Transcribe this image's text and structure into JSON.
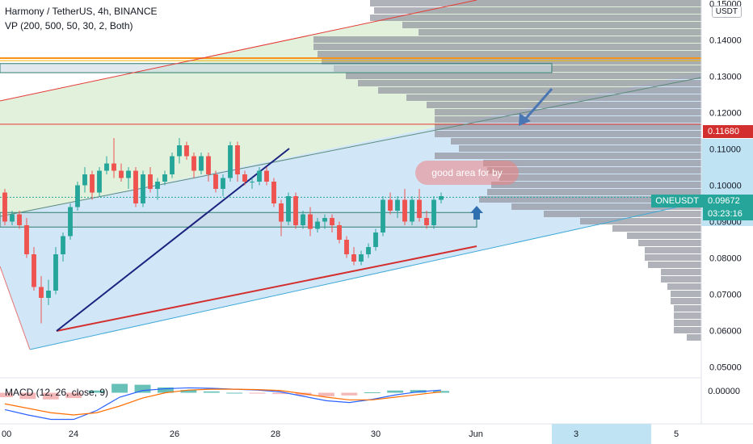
{
  "header": {
    "title": "Harmony / TetherUS, 4h, BINANCE",
    "indicator": "VP (200, 500, 50, 30, 2, Both)"
  },
  "currency_label": "USDT",
  "symbol_label": "ONEUSDT",
  "current_price": "0.09672",
  "countdown": "03:23:16",
  "marked_price": "0.11680",
  "annotation": "good area for by",
  "macd": {
    "label": "MACD (12, 26, close, 9)",
    "value": "0.00000"
  },
  "colors": {
    "up": "#26a69a",
    "down": "#ef5350",
    "volume_profile": "#9598a1",
    "upper_channel_fill": "#dff0d8",
    "lower_channel_fill": "#cce4f7",
    "orange_line": "#f7931a",
    "red_line": "#e53935",
    "current_price_bg": "#26a69a",
    "marked_price_bg": "#d32f2f"
  },
  "chart_data": {
    "type": "candlestick",
    "y_axis_ticks": [
      "0.15000",
      "0.14000",
      "0.13000",
      "0.12000",
      "0.11000",
      "0.10000",
      "0.09000",
      "0.08000",
      "0.07000",
      "0.06000",
      "0.05000"
    ],
    "ylim": [
      0.047,
      0.151
    ],
    "x_axis_ticks": [
      "00",
      "24",
      "26",
      "28",
      "30",
      "Jun",
      "3",
      "5"
    ],
    "highlighted_tick": "3",
    "candles": [
      [
        0.098,
        0.099,
        0.089,
        0.09
      ],
      [
        0.09,
        0.093,
        0.089,
        0.092
      ],
      [
        0.092,
        0.093,
        0.088,
        0.089
      ],
      [
        0.089,
        0.091,
        0.08,
        0.081
      ],
      [
        0.081,
        0.083,
        0.071,
        0.072
      ],
      [
        0.072,
        0.075,
        0.062,
        0.069
      ],
      [
        0.069,
        0.074,
        0.067,
        0.071
      ],
      [
        0.071,
        0.083,
        0.07,
        0.081
      ],
      [
        0.081,
        0.087,
        0.079,
        0.086
      ],
      [
        0.086,
        0.095,
        0.085,
        0.094
      ],
      [
        0.094,
        0.101,
        0.093,
        0.1
      ],
      [
        0.1,
        0.105,
        0.098,
        0.103
      ],
      [
        0.103,
        0.104,
        0.096,
        0.098
      ],
      [
        0.098,
        0.105,
        0.097,
        0.104
      ],
      [
        0.104,
        0.108,
        0.103,
        0.106
      ],
      [
        0.106,
        0.113,
        0.102,
        0.104
      ],
      [
        0.104,
        0.106,
        0.101,
        0.102
      ],
      [
        0.102,
        0.105,
        0.099,
        0.104
      ],
      [
        0.104,
        0.105,
        0.094,
        0.095
      ],
      [
        0.095,
        0.104,
        0.094,
        0.103
      ],
      [
        0.103,
        0.105,
        0.098,
        0.099
      ],
      [
        0.099,
        0.102,
        0.096,
        0.101
      ],
      [
        0.101,
        0.104,
        0.1,
        0.103
      ],
      [
        0.103,
        0.109,
        0.102,
        0.108
      ],
      [
        0.108,
        0.113,
        0.106,
        0.111
      ],
      [
        0.111,
        0.112,
        0.107,
        0.108
      ],
      [
        0.108,
        0.109,
        0.102,
        0.104
      ],
      [
        0.104,
        0.109,
        0.103,
        0.108
      ],
      [
        0.108,
        0.109,
        0.101,
        0.103
      ],
      [
        0.103,
        0.104,
        0.098,
        0.099
      ],
      [
        0.099,
        0.103,
        0.097,
        0.102
      ],
      [
        0.102,
        0.112,
        0.101,
        0.111
      ],
      [
        0.111,
        0.112,
        0.101,
        0.103
      ],
      [
        0.103,
        0.104,
        0.1,
        0.101
      ],
      [
        0.101,
        0.102,
        0.099,
        0.101
      ],
      [
        0.101,
        0.105,
        0.1,
        0.104
      ],
      [
        0.104,
        0.105,
        0.1,
        0.101
      ],
      [
        0.101,
        0.102,
        0.094,
        0.095
      ],
      [
        0.095,
        0.096,
        0.086,
        0.09
      ],
      [
        0.09,
        0.098,
        0.089,
        0.097
      ],
      [
        0.097,
        0.098,
        0.088,
        0.089
      ],
      [
        0.089,
        0.093,
        0.088,
        0.092
      ],
      [
        0.092,
        0.094,
        0.086,
        0.088
      ],
      [
        0.088,
        0.091,
        0.087,
        0.09
      ],
      [
        0.09,
        0.092,
        0.088,
        0.091
      ],
      [
        0.091,
        0.092,
        0.087,
        0.089
      ],
      [
        0.089,
        0.09,
        0.084,
        0.085
      ],
      [
        0.085,
        0.086,
        0.08,
        0.081
      ],
      [
        0.081,
        0.083,
        0.078,
        0.079
      ],
      [
        0.079,
        0.082,
        0.078,
        0.081
      ],
      [
        0.081,
        0.084,
        0.08,
        0.083
      ],
      [
        0.083,
        0.088,
        0.082,
        0.087
      ],
      [
        0.087,
        0.097,
        0.086,
        0.096
      ],
      [
        0.096,
        0.098,
        0.092,
        0.093
      ],
      [
        0.093,
        0.097,
        0.091,
        0.096
      ],
      [
        0.096,
        0.099,
        0.089,
        0.09
      ],
      [
        0.09,
        0.097,
        0.089,
        0.096
      ],
      [
        0.096,
        0.099,
        0.09,
        0.091
      ],
      [
        0.091,
        0.093,
        0.088,
        0.089
      ],
      [
        0.089,
        0.097,
        0.088,
        0.096
      ],
      [
        0.096,
        0.098,
        0.095,
        0.097
      ]
    ],
    "volume_profile": {
      "bins": [
        0.058,
        0.06,
        0.062,
        0.064,
        0.066,
        0.068,
        0.07,
        0.072,
        0.074,
        0.076,
        0.078,
        0.08,
        0.082,
        0.084,
        0.086,
        0.088,
        0.09,
        0.092,
        0.094,
        0.096,
        0.098,
        0.1,
        0.102,
        0.104,
        0.106,
        0.108,
        0.11,
        0.112,
        0.114,
        0.116,
        0.118,
        0.12,
        0.122,
        0.124,
        0.126,
        0.128,
        0.13,
        0.132,
        0.134,
        0.136,
        0.138,
        0.14,
        0.142,
        0.144,
        0.146,
        0.148,
        0.15
      ],
      "volumes": [
        18,
        34,
        34,
        34,
        34,
        38,
        38,
        42,
        50,
        50,
        66,
        70,
        70,
        78,
        92,
        110,
        150,
        195,
        235,
        275,
        265,
        260,
        250,
        265,
        270,
        330,
        300,
        310,
        330,
        330,
        330,
        330,
        340,
        365,
        400,
        425,
        440,
        455,
        470,
        475,
        480,
        480,
        350,
        370,
        410,
        405,
        410
      ]
    },
    "zones": [
      {
        "low": 0.131,
        "high": 0.1335
      },
      {
        "low": 0.0885,
        "high": 0.0925
      }
    ],
    "horizontal_lines": [
      0.135,
      0.1343,
      0.1168
    ],
    "macd": {
      "macd": [
        -0.0038,
        -0.005,
        -0.006,
        -0.006,
        -0.004,
        -0.001,
        0.0005,
        0.0009,
        0.0011,
        0.001,
        0.0008,
        0.0006,
        0.0002,
        -0.0008,
        -0.0018,
        -0.0022,
        -0.0015,
        -0.0005,
        0.0002,
        0.0006
      ],
      "signal": [
        -0.0025,
        -0.0035,
        -0.0045,
        -0.005,
        -0.0045,
        -0.003,
        -0.0012,
        0.0,
        0.0006,
        0.0008,
        0.0008,
        0.0007,
        0.0005,
        -0.0002,
        -0.001,
        -0.0016,
        -0.0016,
        -0.001,
        -0.0004,
        0.0002
      ],
      "histogram": [
        -0.001,
        -0.0014,
        -0.0015,
        -0.0012,
        0.0005,
        0.002,
        0.0018,
        0.0012,
        0.0006,
        0.0003,
        0.0,
        -0.0002,
        -0.0003,
        -0.0006,
        -0.0008,
        -0.0006,
        0.0001,
        0.0005,
        0.0006,
        0.0004
      ]
    }
  }
}
